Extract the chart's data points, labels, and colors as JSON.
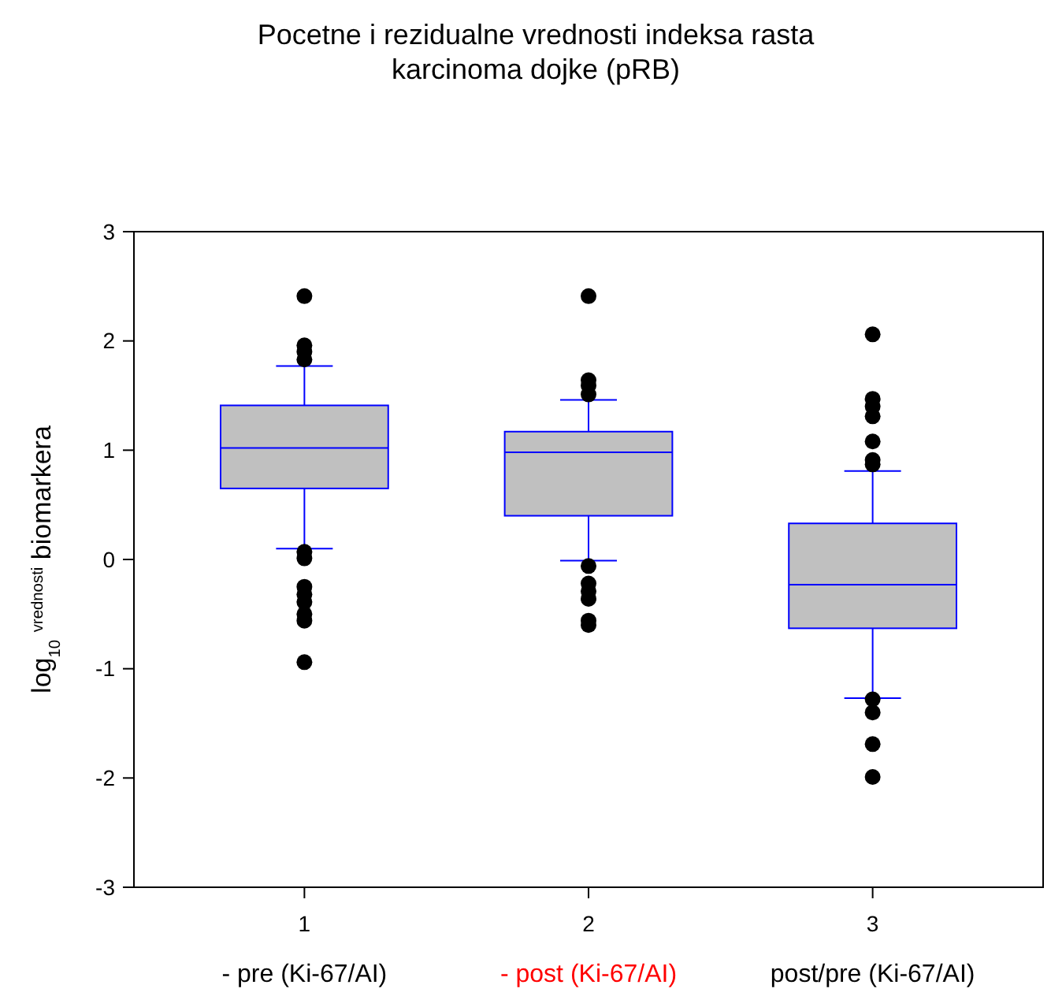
{
  "chart_data": {
    "type": "box",
    "title": "Pocetne i rezidualne vrednosti indeksa rasta\nkarcinoma dojke (pRB)",
    "ylabel": "log$_{10}$ $^{vrednosti}$ biomarkera",
    "categories": [
      "1",
      "2",
      "3"
    ],
    "ylim": [
      -3,
      3
    ],
    "yticks": [
      -3,
      -2,
      -1,
      0,
      1,
      2,
      3
    ],
    "grid": false,
    "annotations": [
      "- pre (Ki-67/AI)",
      "- post (Ki-67/AI)",
      "post/pre (Ki-67/AI)"
    ],
    "series": [
      {
        "color": "#c0c0c0",
        "boxes": [
          {
            "low": 0.1,
            "q1": 0.65,
            "median": 1.02,
            "q3": 1.41,
            "high": 1.77,
            "outliers": [
              2.41,
              1.96,
              1.9,
              1.83,
              0.07,
              0.01,
              -0.25,
              -0.32,
              -0.39,
              -0.5,
              -0.56,
              -0.94
            ]
          },
          {
            "low": -0.01,
            "q1": 0.4,
            "median": 0.98,
            "q3": 1.17,
            "high": 1.46,
            "outliers": [
              2.41,
              1.64,
              1.59,
              1.51,
              -0.06,
              -0.22,
              -0.29,
              -0.36,
              -0.56,
              -0.6
            ]
          },
          {
            "low": -1.27,
            "q1": -0.63,
            "median": -0.23,
            "q3": 0.33,
            "high": 0.81,
            "outliers": [
              2.06,
              1.47,
              1.4,
              1.31,
              1.08,
              0.91,
              0.87,
              -1.28,
              -1.4,
              -1.69,
              -1.99
            ]
          }
        ]
      }
    ]
  }
}
